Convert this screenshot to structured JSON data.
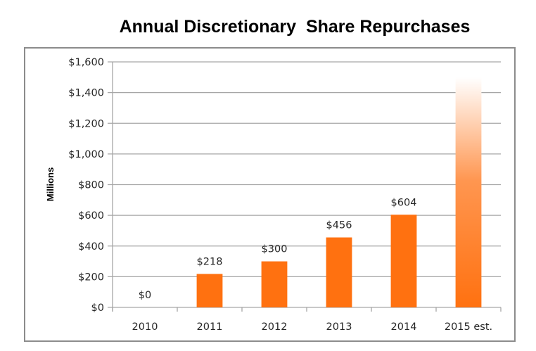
{
  "chart_data": {
    "type": "bar",
    "title": "Annual Discretionary  Share Repurchases",
    "xlabel": "",
    "ylabel": "Millions",
    "categories": [
      "2010",
      "2011",
      "2012",
      "2013",
      "2014",
      "2015 est."
    ],
    "values": [
      0,
      218,
      300,
      456,
      604,
      1500
    ],
    "data_labels": [
      "$0",
      "$218",
      "$300",
      "$456",
      "$604",
      ""
    ],
    "estimated": [
      false,
      false,
      false,
      false,
      false,
      true
    ],
    "ylim": [
      0,
      1600
    ],
    "yticks": [
      0,
      200,
      400,
      600,
      800,
      1000,
      1200,
      1400,
      1600
    ],
    "ytick_labels": [
      "$0",
      "$200",
      "$400",
      "$600",
      "$800",
      "$1,000",
      "$1,200",
      "$1,400",
      "$1,600"
    ],
    "grid": true,
    "legend": "none",
    "colors": {
      "bar": "#ff7110",
      "estimate_bar_bottom": "#ff7110",
      "estimate_bar_top": "#ffffff",
      "gridline": "#a6a6a6",
      "frame": "#8c8c8c"
    }
  }
}
